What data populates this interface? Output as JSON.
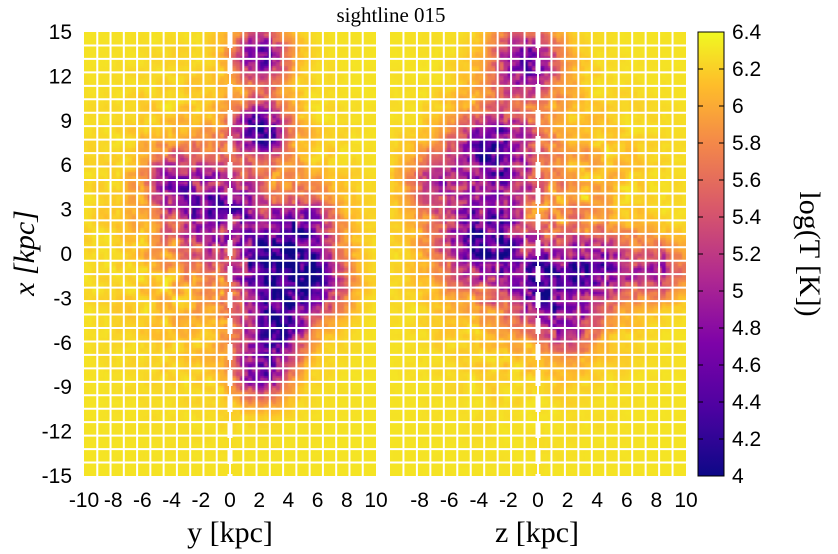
{
  "chart_data": {
    "type": "heatmap",
    "title": "sightline 015",
    "ylabel": "x [kpc]",
    "ylim": [
      -15,
      15
    ],
    "yticks": [
      "15",
      "12",
      "9",
      "6",
      "3",
      "0",
      "-3",
      "-6",
      "-9",
      "-12",
      "-15"
    ],
    "colormap": "plasma",
    "panels": [
      {
        "name": "left",
        "xlabel": "y [kpc]",
        "xlim": [
          -10,
          10
        ],
        "xtick_labels": [
          "-10",
          "-8",
          "-6",
          "-4",
          "-2",
          "0",
          "2",
          "4",
          "6",
          "8",
          "10"
        ],
        "dashed_line_x": 0
      },
      {
        "name": "right",
        "xlabel": "z [kpc]",
        "xlim": [
          -10,
          10
        ],
        "xtick_labels": [
          "-8",
          "-6",
          "-4",
          "-2",
          "0",
          "2",
          "4",
          "6",
          "8",
          "10"
        ],
        "dashed_line_x": 0
      }
    ],
    "colorbar": {
      "label": "log(T [K])",
      "range": [
        4,
        6.4
      ],
      "ticks": [
        "6.4",
        "6.2",
        "6",
        "5.8",
        "5.6",
        "5.4",
        "5.2",
        "5",
        "4.8",
        "4.6",
        "4.4",
        "4.2",
        "4"
      ]
    },
    "grid": true
  }
}
